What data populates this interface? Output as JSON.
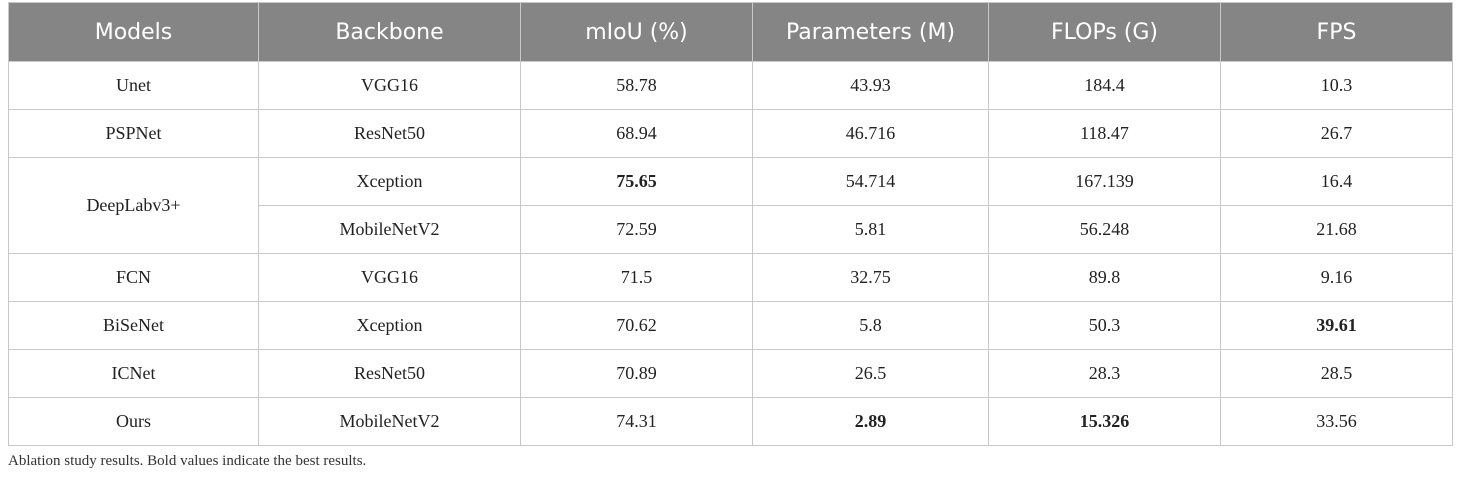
{
  "table": {
    "header": [
      "Models",
      "Backbone",
      "mIoU (%)",
      "Parameters (M)",
      "FLOPs (G)",
      "FPS"
    ],
    "rows": [
      [
        "Unet",
        "VGG16",
        "58.78",
        "43.93",
        "184.4",
        "10.3"
      ],
      [
        "PSPNet",
        "ResNet50",
        "68.94",
        "46.716",
        "118.47",
        "26.7"
      ],
      [
        "DeepLabv3+",
        "Xception",
        "75.65",
        "54.714",
        "167.139",
        "16.4"
      ],
      [
        null,
        "MobileNetV2",
        "72.59",
        "5.81",
        "56.248",
        "21.68"
      ],
      [
        "FCN",
        "VGG16",
        "71.5",
        "32.75",
        "89.8",
        "9.16"
      ],
      [
        "BiSeNet",
        "Xception",
        "70.62",
        "5.8",
        "50.3",
        "39.61"
      ],
      [
        "ICNet",
        "ResNet50",
        "70.89",
        "26.5",
        "28.3",
        "28.5"
      ],
      [
        "Ours",
        "MobileNetV2",
        "74.31",
        "2.89",
        "15.326",
        "33.56"
      ]
    ],
    "bold_cells": [
      [
        2,
        2
      ],
      [
        5,
        5
      ],
      [
        7,
        3
      ],
      [
        7,
        4
      ]
    ],
    "caption": "Ablation study results. Bold values indicate the best results."
  }
}
